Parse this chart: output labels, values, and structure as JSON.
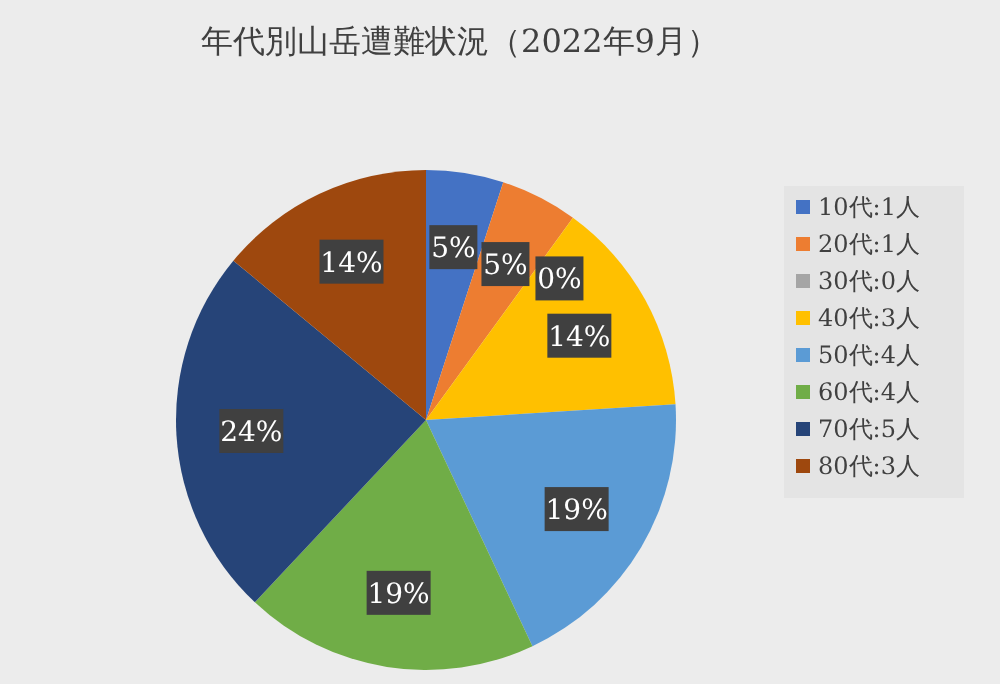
{
  "chart_data": {
    "type": "pie",
    "title": "年代別山岳遭難状況（2022年9月）",
    "categories": [
      "10代:1人",
      "20代:1人",
      "30代:0人",
      "40代:3人",
      "50代:4人",
      "60代:4人",
      "70代:5人",
      "80代:3人"
    ],
    "values": [
      5,
      5,
      0,
      14,
      19,
      19,
      24,
      14
    ],
    "value_labels": [
      "5%",
      "5%",
      "0%",
      "14%",
      "19%",
      "19%",
      "24%",
      "14%"
    ],
    "colors": [
      "#4472c4",
      "#ed7d31",
      "#a5a5a5",
      "#ffc000",
      "#5b9bd5",
      "#70ad47",
      "#264478",
      "#9e480e"
    ],
    "legend": "right"
  }
}
